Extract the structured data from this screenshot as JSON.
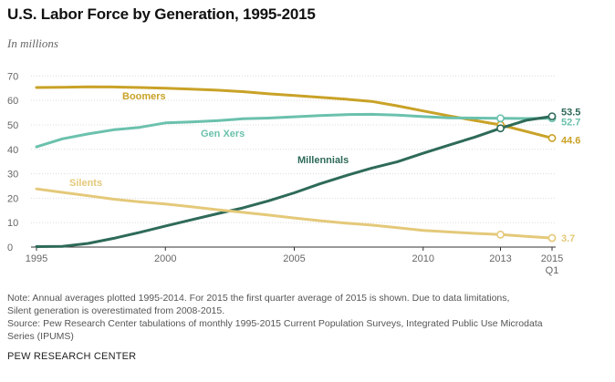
{
  "title": "U.S. Labor Force by Generation, 1995-2015",
  "subtitle": "In millions",
  "notes": [
    "Note: Annual averages plotted 1995-2014. For 2015 the first quarter average of 2015 is shown. Due to data limitations,",
    "Silent generation is overestimated from 2008-2015.",
    "Source: Pew Research Center tabulations of monthly 1995-2015 Current Population Surveys, Integrated Public Use Microdata",
    "Series (IPUMS)"
  ],
  "brand": "PEW RESEARCH CENTER",
  "chart_data": {
    "type": "line",
    "x": [
      1995,
      1996,
      1997,
      1998,
      1999,
      2000,
      2001,
      2002,
      2003,
      2004,
      2005,
      2006,
      2007,
      2008,
      2009,
      2010,
      2011,
      2012,
      2013,
      2014,
      2015
    ],
    "series": [
      {
        "name": "Boomers",
        "color": "#c9a227",
        "values": [
          65.3,
          65.4,
          65.6,
          65.5,
          65.3,
          65.0,
          64.6,
          64.2,
          63.6,
          62.7,
          62.0,
          61.3,
          60.5,
          59.6,
          57.8,
          55.7,
          53.7,
          51.8,
          50.0,
          47.3,
          44.6
        ],
        "end_label": "44.6"
      },
      {
        "name": "Gen Xers",
        "color": "#6bc1ad",
        "values": [
          41.0,
          44.3,
          46.3,
          48.0,
          49.0,
          50.8,
          51.2,
          51.7,
          52.5,
          52.8,
          53.3,
          53.8,
          54.2,
          54.3,
          54.0,
          53.4,
          52.9,
          52.8,
          52.7,
          52.6,
          52.7
        ],
        "end_label": "52.7"
      },
      {
        "name": "Millennials",
        "color": "#2e6a59",
        "values": [
          0.2,
          0.3,
          1.5,
          3.6,
          6.0,
          8.6,
          11.1,
          13.6,
          16.0,
          18.9,
          22.2,
          25.9,
          29.2,
          32.3,
          34.9,
          38.4,
          41.7,
          45.0,
          48.6,
          51.9,
          53.5
        ],
        "end_label": "53.5"
      },
      {
        "name": "Silents",
        "color": "#e4c97a",
        "values": [
          23.8,
          22.4,
          21.0,
          19.6,
          18.5,
          17.6,
          16.5,
          15.3,
          14.2,
          13.1,
          11.9,
          10.8,
          9.8,
          9.0,
          7.9,
          6.8,
          6.2,
          5.6,
          5.1,
          4.4,
          3.7
        ],
        "end_label": "3.7"
      }
    ],
    "x_ticks": [
      1995,
      2000,
      2005,
      2010,
      2013,
      2015
    ],
    "x_tick_labels": [
      "1995",
      "2000",
      "2005",
      "2010",
      "2013",
      "2015"
    ],
    "x_sublabel": "Q1",
    "y_ticks": [
      0,
      10,
      20,
      30,
      40,
      50,
      60,
      70
    ],
    "ylim": [
      0,
      72
    ],
    "xlim": [
      1995,
      2015
    ],
    "markers_at": [
      2013,
      2015
    ],
    "grid": true
  }
}
